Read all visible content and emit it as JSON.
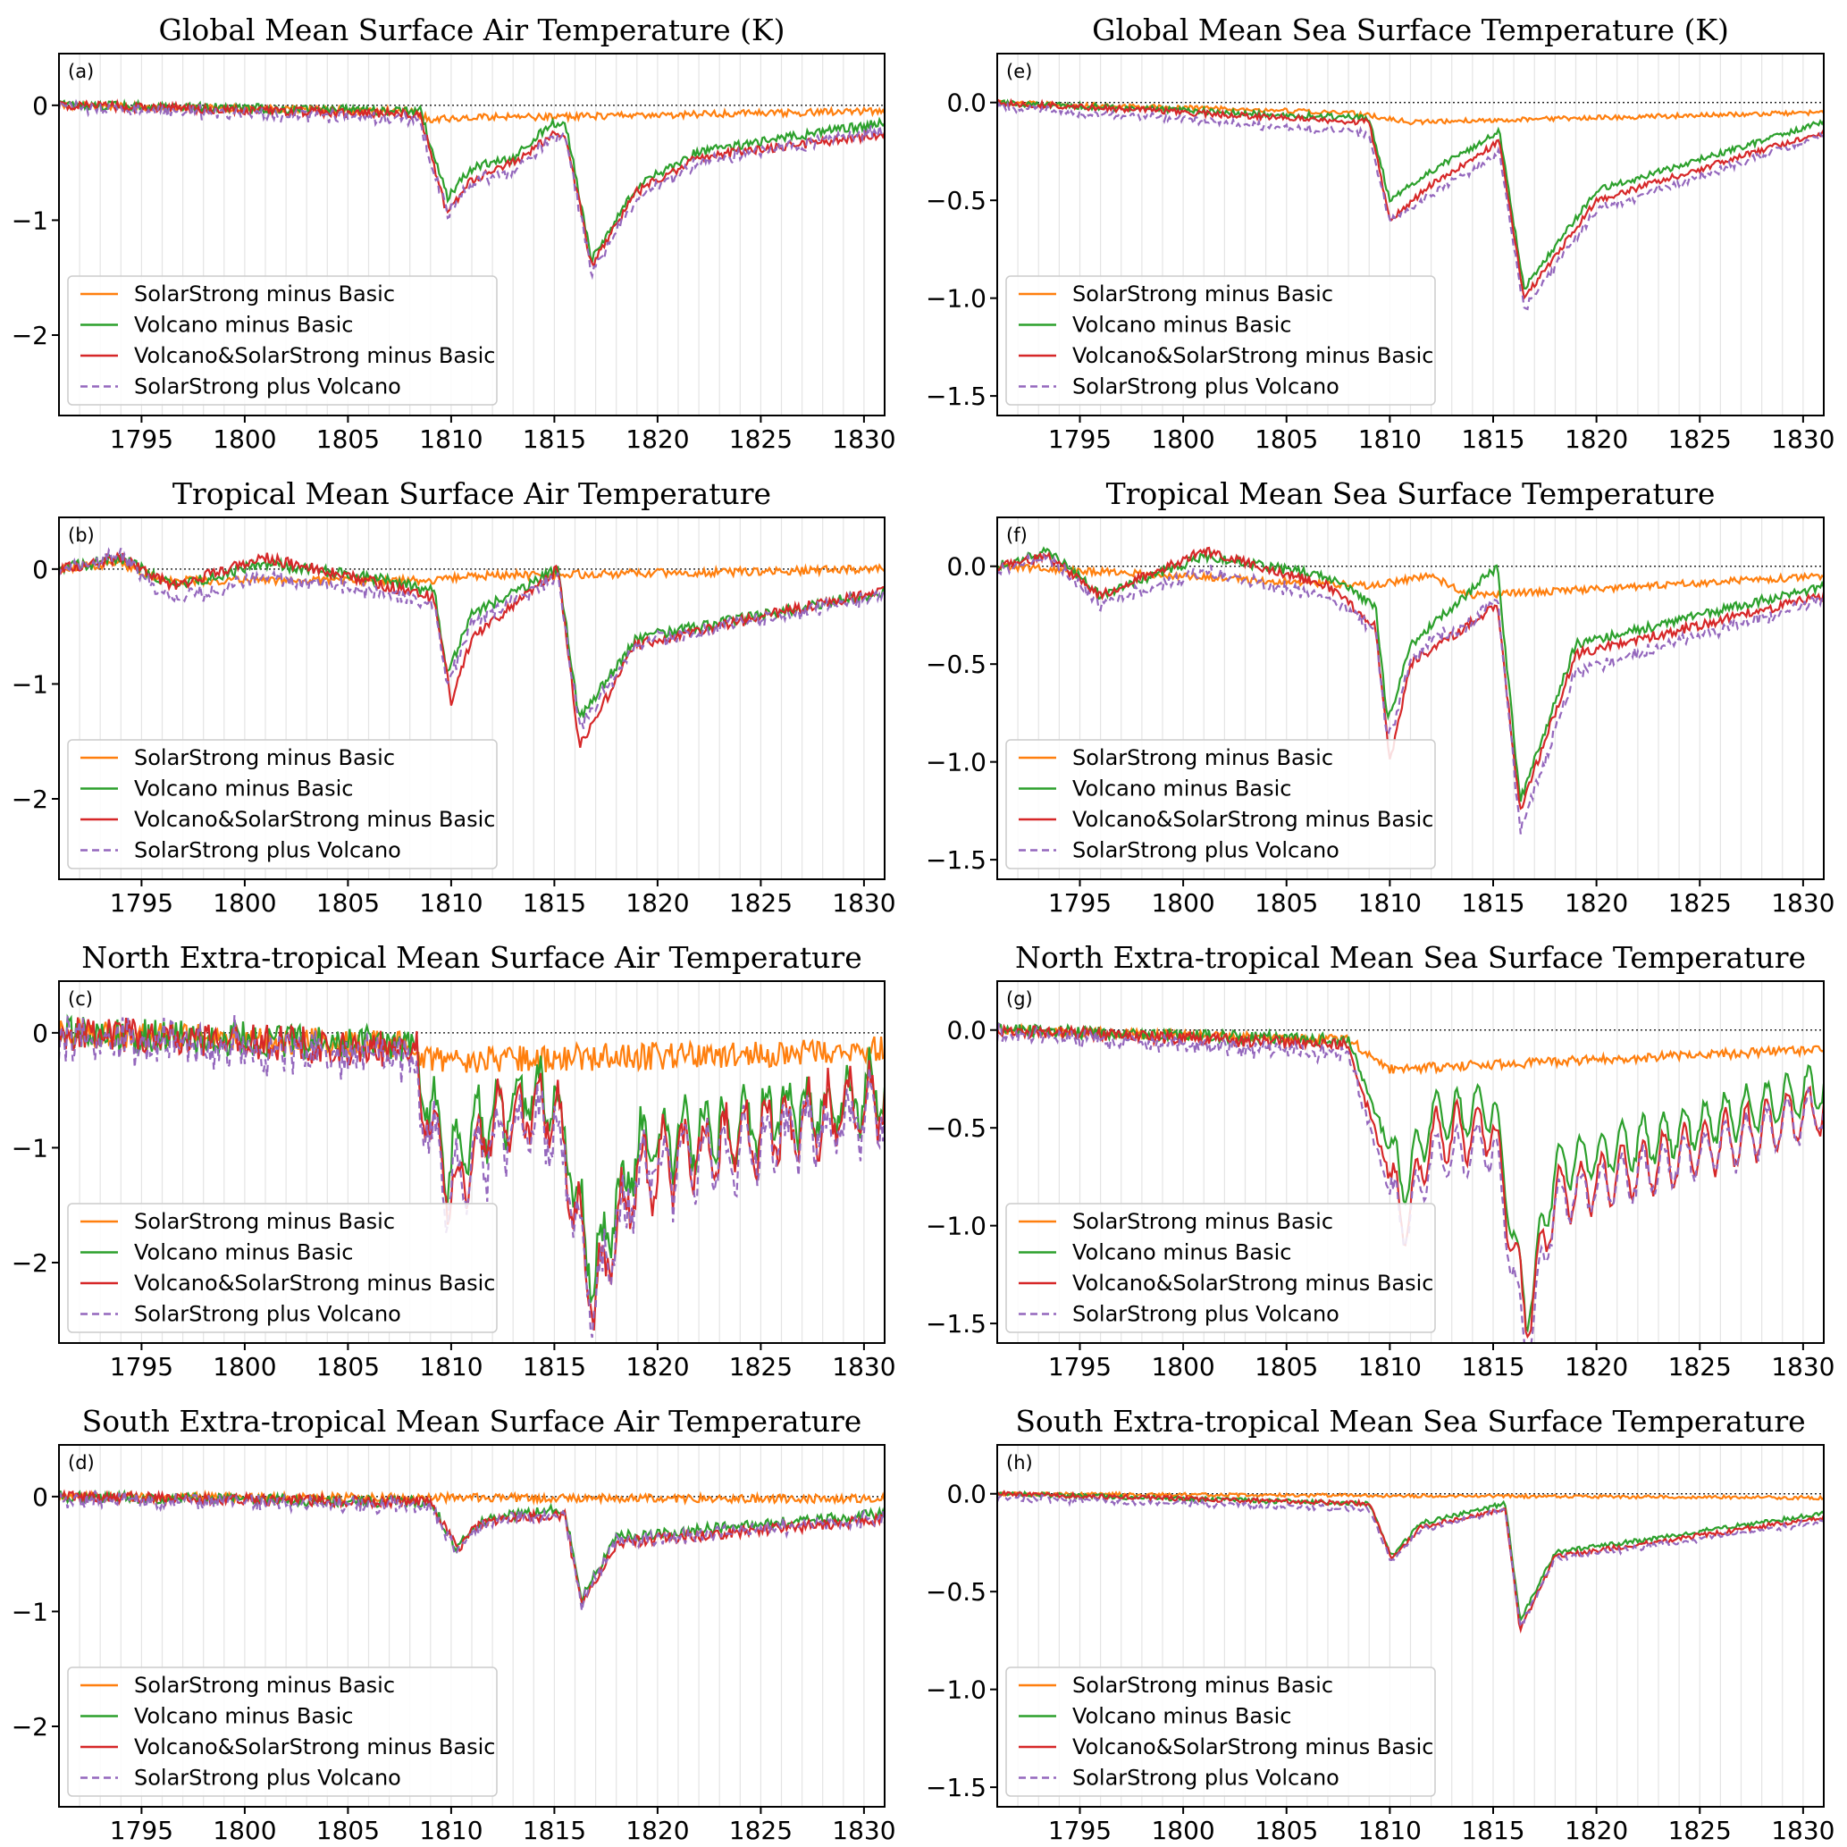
{
  "chart_data": [
    {
      "panel": "(a)",
      "title": "Global Mean Surface Air Temperature (K)",
      "type": "line",
      "xlim": [
        1791,
        1831
      ],
      "ylim": [
        -2.7,
        0.45
      ],
      "yticks": [
        0,
        -1,
        -2
      ],
      "ytick_labels": [
        "0",
        "−1",
        "−2"
      ],
      "profile": "a"
    },
    {
      "panel": "(b)",
      "title": "Tropical Mean Surface Air Temperature",
      "type": "line",
      "xlim": [
        1791,
        1831
      ],
      "ylim": [
        -2.7,
        0.45
      ],
      "yticks": [
        0,
        -1,
        -2
      ],
      "ytick_labels": [
        "0",
        "−1",
        "−2"
      ],
      "profile": "b"
    },
    {
      "panel": "(c)",
      "title": "North Extra-tropical Mean Surface Air Temperature",
      "type": "line",
      "xlim": [
        1791,
        1831
      ],
      "ylim": [
        -2.7,
        0.45
      ],
      "yticks": [
        0,
        -1,
        -2
      ],
      "ytick_labels": [
        "0",
        "−1",
        "−2"
      ],
      "profile": "c"
    },
    {
      "panel": "(d)",
      "title": "South Extra-tropical Mean Surface Air Temperature",
      "type": "line",
      "xlim": [
        1791,
        1831
      ],
      "ylim": [
        -2.7,
        0.45
      ],
      "yticks": [
        0,
        -1,
        -2
      ],
      "ytick_labels": [
        "0",
        "−1",
        "−2"
      ],
      "profile": "d"
    },
    {
      "panel": "(e)",
      "title": "Global Mean Sea Surface Temperature (K)",
      "type": "line",
      "xlim": [
        1791,
        1831
      ],
      "ylim": [
        -1.6,
        0.25
      ],
      "yticks": [
        0,
        -0.5,
        -1,
        -1.5
      ],
      "ytick_labels": [
        "0.0",
        "−0.5",
        "−1.0",
        "−1.5"
      ],
      "profile": "e"
    },
    {
      "panel": "(f)",
      "title": "Tropical Mean Sea Surface Temperature",
      "type": "line",
      "xlim": [
        1791,
        1831
      ],
      "ylim": [
        -1.6,
        0.25
      ],
      "yticks": [
        0,
        -0.5,
        -1,
        -1.5
      ],
      "ytick_labels": [
        "0.0",
        "−0.5",
        "−1.0",
        "−1.5"
      ],
      "profile": "f"
    },
    {
      "panel": "(g)",
      "title": "North Extra-tropical Mean Sea Surface Temperature",
      "type": "line",
      "xlim": [
        1791,
        1831
      ],
      "ylim": [
        -1.6,
        0.25
      ],
      "yticks": [
        0,
        -0.5,
        -1,
        -1.5
      ],
      "ytick_labels": [
        "0.0",
        "−0.5",
        "−1.0",
        "−1.5"
      ],
      "profile": "g"
    },
    {
      "panel": "(h)",
      "title": "South Extra-tropical Mean Sea Surface Temperature",
      "type": "line",
      "xlim": [
        1791,
        1831
      ],
      "ylim": [
        -1.6,
        0.25
      ],
      "yticks": [
        0,
        -0.5,
        -1,
        -1.5
      ],
      "ytick_labels": [
        "0.0",
        "−0.5",
        "−1.0",
        "−1.5"
      ],
      "profile": "h"
    }
  ],
  "xticks": [
    1795,
    1800,
    1805,
    1810,
    1815,
    1820,
    1825,
    1830
  ],
  "xtick_labels": [
    "1795",
    "1800",
    "1805",
    "1810",
    "1815",
    "1820",
    "1825",
    "1830"
  ],
  "series": [
    {
      "name": "SolarStrong minus Basic",
      "color": "#ff7f0e",
      "dash": false
    },
    {
      "name": "Volcano minus Basic",
      "color": "#2ca02c",
      "dash": false
    },
    {
      "name": "Volcano&SolarStrong minus Basic",
      "color": "#d62728",
      "dash": false
    },
    {
      "name": "SolarStrong plus Volcano",
      "color": "#9467bd",
      "dash": true
    }
  ],
  "grid": "vertical yearly lines",
  "legend": "lower-left",
  "zero_line": "dotted",
  "profiles": {
    "a": {
      "solar": [
        [
          1791,
          0
        ],
        [
          1808,
          -0.05
        ],
        [
          1809,
          -0.12
        ],
        [
          1812,
          -0.1
        ],
        [
          1815,
          -0.1
        ],
        [
          1831,
          -0.05
        ]
      ],
      "volcano": [
        [
          1791,
          0
        ],
        [
          1808.5,
          -0.05
        ],
        [
          1809.8,
          -0.8
        ],
        [
          1811,
          -0.55
        ],
        [
          1813,
          -0.45
        ],
        [
          1815,
          -0.15
        ],
        [
          1815.6,
          -0.2
        ],
        [
          1816.8,
          -1.35
        ],
        [
          1819,
          -0.7
        ],
        [
          1822,
          -0.4
        ],
        [
          1831,
          -0.15
        ]
      ],
      "both": [
        [
          1791,
          0
        ],
        [
          1808.5,
          -0.08
        ],
        [
          1809.8,
          -0.95
        ],
        [
          1811,
          -0.65
        ],
        [
          1813,
          -0.5
        ],
        [
          1815,
          -0.25
        ],
        [
          1815.6,
          -0.3
        ],
        [
          1816.8,
          -1.4
        ],
        [
          1819,
          -0.75
        ],
        [
          1822,
          -0.45
        ],
        [
          1831,
          -0.25
        ]
      ],
      "noise": 0.05
    },
    "b": {
      "solar": [
        [
          1791,
          0
        ],
        [
          1794,
          0.05
        ],
        [
          1796,
          -0.1
        ],
        [
          1809,
          -0.1
        ],
        [
          1812,
          -0.05
        ],
        [
          1815,
          -0.05
        ],
        [
          1831,
          0
        ]
      ],
      "volcano": [
        [
          1791,
          0
        ],
        [
          1794,
          0.1
        ],
        [
          1796.5,
          -0.15
        ],
        [
          1801,
          0.05
        ],
        [
          1807,
          -0.1
        ],
        [
          1809.2,
          -0.2
        ],
        [
          1809.8,
          -0.9
        ],
        [
          1811,
          -0.4
        ],
        [
          1815.2,
          0
        ],
        [
          1816.2,
          -1.3
        ],
        [
          1819,
          -0.6
        ],
        [
          1831,
          -0.2
        ]
      ],
      "both": [
        [
          1791,
          0
        ],
        [
          1794,
          0.1
        ],
        [
          1796.5,
          -0.15
        ],
        [
          1801,
          0.1
        ],
        [
          1807,
          -0.15
        ],
        [
          1809.2,
          -0.25
        ],
        [
          1810,
          -1.15
        ],
        [
          1811,
          -0.6
        ],
        [
          1815.2,
          0
        ],
        [
          1816.2,
          -1.55
        ],
        [
          1819,
          -0.65
        ],
        [
          1831,
          -0.18
        ]
      ],
      "noise": 0.06
    },
    "c": {
      "solar": [
        [
          1791,
          0
        ],
        [
          1808,
          -0.1
        ],
        [
          1809,
          -0.25
        ],
        [
          1831,
          -0.15
        ]
      ],
      "volcano": [
        [
          1791,
          0
        ],
        [
          1808,
          -0.1
        ],
        [
          1809.8,
          -1.1
        ],
        [
          1812,
          -0.7
        ],
        [
          1815,
          -0.5
        ],
        [
          1816.9,
          -2.1
        ],
        [
          1819,
          -1.0
        ],
        [
          1831,
          -0.5
        ]
      ],
      "both": [
        [
          1791,
          0
        ],
        [
          1808,
          -0.15
        ],
        [
          1810,
          -1.4
        ],
        [
          1812,
          -0.8
        ],
        [
          1815,
          -0.6
        ],
        [
          1816.9,
          -2.3
        ],
        [
          1819,
          -1.2
        ],
        [
          1831,
          -0.6
        ]
      ],
      "noise": 0.2
    },
    "d": {
      "solar": [
        [
          1791,
          0
        ],
        [
          1831,
          -0.02
        ]
      ],
      "volcano": [
        [
          1791,
          0
        ],
        [
          1809,
          -0.05
        ],
        [
          1810.3,
          -0.45
        ],
        [
          1811.5,
          -0.2
        ],
        [
          1815.5,
          -0.1
        ],
        [
          1816.3,
          -0.9
        ],
        [
          1818,
          -0.35
        ],
        [
          1831,
          -0.15
        ]
      ],
      "both": [
        [
          1791,
          0
        ],
        [
          1809,
          -0.05
        ],
        [
          1810.3,
          -0.45
        ],
        [
          1811.5,
          -0.22
        ],
        [
          1815.5,
          -0.15
        ],
        [
          1816.3,
          -0.95
        ],
        [
          1818,
          -0.4
        ],
        [
          1831,
          -0.2
        ]
      ],
      "noise": 0.06
    },
    "e": {
      "solar": [
        [
          1791,
          0
        ],
        [
          1808,
          -0.05
        ],
        [
          1811,
          -0.1
        ],
        [
          1831,
          -0.05
        ]
      ],
      "volcano": [
        [
          1791,
          0
        ],
        [
          1809,
          -0.08
        ],
        [
          1810,
          -0.5
        ],
        [
          1812,
          -0.35
        ],
        [
          1815.3,
          -0.15
        ],
        [
          1816.5,
          -0.95
        ],
        [
          1820,
          -0.45
        ],
        [
          1831,
          -0.1
        ]
      ],
      "both": [
        [
          1791,
          0
        ],
        [
          1809,
          -0.1
        ],
        [
          1810,
          -0.6
        ],
        [
          1812,
          -0.42
        ],
        [
          1815.3,
          -0.2
        ],
        [
          1816.5,
          -1.0
        ],
        [
          1820,
          -0.5
        ],
        [
          1831,
          -0.15
        ]
      ],
      "noise": 0.02
    },
    "f": {
      "solar": [
        [
          1791,
          0
        ],
        [
          1809,
          -0.1
        ],
        [
          1812,
          -0.05
        ],
        [
          1814,
          -0.15
        ],
        [
          1831,
          -0.05
        ]
      ],
      "volcano": [
        [
          1791,
          0
        ],
        [
          1793.5,
          0.08
        ],
        [
          1796,
          -0.15
        ],
        [
          1801,
          0.05
        ],
        [
          1807,
          -0.05
        ],
        [
          1809.3,
          -0.2
        ],
        [
          1809.9,
          -0.8
        ],
        [
          1811,
          -0.4
        ],
        [
          1815.2,
          0
        ],
        [
          1816.3,
          -1.2
        ],
        [
          1819,
          -0.4
        ],
        [
          1831,
          -0.1
        ]
      ],
      "both": [
        [
          1791,
          0
        ],
        [
          1793.5,
          0.05
        ],
        [
          1796,
          -0.15
        ],
        [
          1801,
          0.08
        ],
        [
          1807,
          -0.1
        ],
        [
          1809.3,
          -0.3
        ],
        [
          1810,
          -1.0
        ],
        [
          1811,
          -0.5
        ],
        [
          1815.2,
          -0.2
        ],
        [
          1816.3,
          -1.25
        ],
        [
          1819,
          -0.45
        ],
        [
          1831,
          -0.15
        ]
      ],
      "noise": 0.03
    },
    "g": {
      "solar": [
        [
          1791,
          0
        ],
        [
          1808,
          -0.05
        ],
        [
          1810,
          -0.2
        ],
        [
          1831,
          -0.1
        ]
      ],
      "volcano": [
        [
          1791,
          0
        ],
        [
          1808,
          -0.05
        ],
        [
          1810.7,
          -0.8
        ],
        [
          1812,
          -0.45
        ],
        [
          1815,
          -0.4
        ],
        [
          1816.6,
          -1.45
        ],
        [
          1818,
          -0.7
        ],
        [
          1831,
          -0.3
        ]
      ],
      "both": [
        [
          1791,
          0
        ],
        [
          1808,
          -0.08
        ],
        [
          1810.7,
          -1.0
        ],
        [
          1812,
          -0.55
        ],
        [
          1815,
          -0.5
        ],
        [
          1816.6,
          -1.5
        ],
        [
          1818,
          -0.85
        ],
        [
          1831,
          -0.4
        ]
      ],
      "noise": 0.04
    },
    "h": {
      "solar": [
        [
          1791,
          0
        ],
        [
          1831,
          -0.02
        ]
      ],
      "volcano": [
        [
          1791,
          0
        ],
        [
          1809,
          -0.05
        ],
        [
          1810.1,
          -0.32
        ],
        [
          1811.5,
          -0.15
        ],
        [
          1815.6,
          -0.05
        ],
        [
          1816.3,
          -0.65
        ],
        [
          1818,
          -0.3
        ],
        [
          1831,
          -0.1
        ]
      ],
      "both": [
        [
          1791,
          0
        ],
        [
          1809,
          -0.05
        ],
        [
          1810.1,
          -0.33
        ],
        [
          1811.5,
          -0.17
        ],
        [
          1815.6,
          -0.08
        ],
        [
          1816.3,
          -0.7
        ],
        [
          1818,
          -0.32
        ],
        [
          1831,
          -0.12
        ]
      ],
      "noise": 0.015
    }
  }
}
